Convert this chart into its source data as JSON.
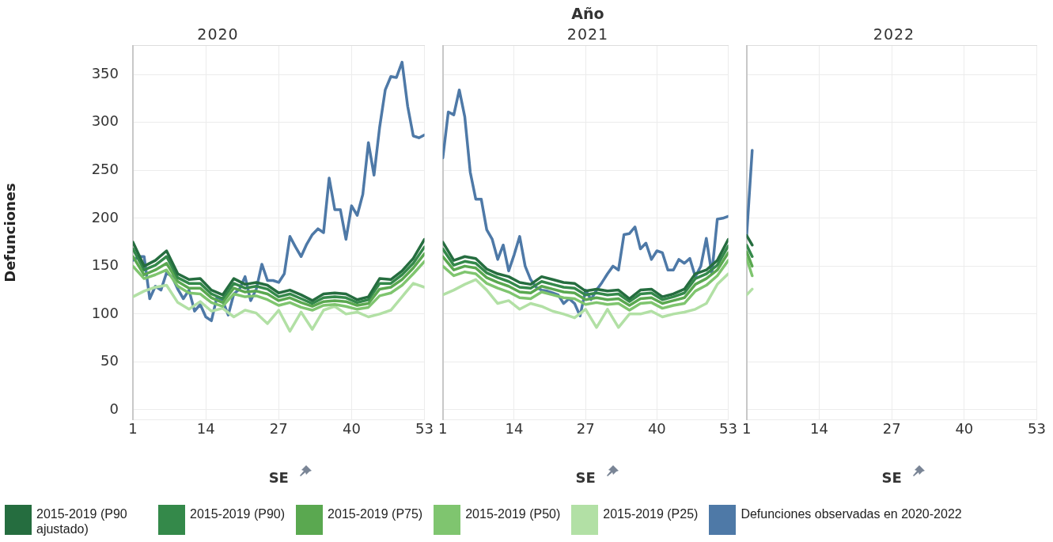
{
  "chart_data": [
    {
      "type": "line",
      "subtitle": "2020",
      "xlabel": "SE",
      "ylabel": "Defunciones",
      "x": [
        1,
        3,
        5,
        7,
        9,
        11,
        13,
        15,
        17,
        19,
        21,
        23,
        25,
        27,
        29,
        31,
        33,
        35,
        37,
        39,
        41,
        43,
        45,
        47,
        49,
        51,
        53
      ],
      "xlim": [
        1,
        53
      ],
      "xticks": [
        1,
        14,
        27,
        40,
        53
      ],
      "ylim": [
        -10,
        380
      ],
      "yticks": [
        0,
        50,
        100,
        150,
        200,
        250,
        300,
        350
      ],
      "grid": true,
      "legend": "bottom",
      "marker": "none",
      "series": [
        {
          "name": "2015-2019 (P90 ajustado)",
          "color": "#256d3f",
          "values": [
            175,
            150,
            156,
            166,
            142,
            136,
            137,
            125,
            120,
            137,
            131,
            133,
            130,
            122,
            125,
            120,
            114,
            121,
            122,
            121,
            115,
            118,
            137,
            136,
            145,
            158,
            178
          ]
        },
        {
          "name": "2015-2019 (P90)",
          "color": "#34894a",
          "values": [
            168,
            146,
            151,
            160,
            138,
            132,
            132,
            121,
            116,
            132,
            127,
            129,
            126,
            118,
            121,
            116,
            111,
            117,
            118,
            117,
            112,
            115,
            132,
            132,
            141,
            153,
            170
          ]
        },
        {
          "name": "2015-2019 (P75)",
          "color": "#5aa850",
          "values": [
            160,
            141,
            146,
            153,
            134,
            127,
            127,
            117,
            112,
            127,
            123,
            124,
            121,
            114,
            117,
            112,
            108,
            113,
            114,
            113,
            109,
            111,
            126,
            128,
            136,
            148,
            163
          ]
        },
        {
          "name": "2015-2019 (P50)",
          "color": "#7fc56f",
          "values": [
            150,
            137,
            141,
            146,
            129,
            122,
            121,
            112,
            108,
            121,
            118,
            119,
            115,
            109,
            112,
            107,
            104,
            109,
            110,
            108,
            105,
            107,
            119,
            122,
            130,
            142,
            155
          ]
        },
        {
          "name": "2015-2019 (P25)",
          "color": "#b2e0a5",
          "values": [
            118,
            124,
            128,
            130,
            112,
            105,
            113,
            103,
            106,
            97,
            104,
            101,
            90,
            104,
            82,
            102,
            84,
            104,
            108,
            100,
            102,
            97,
            100,
            104,
            118,
            132,
            128
          ]
        },
        {
          "name": "Defunciones observadas en 2020-2022",
          "color": "#4e79a7",
          "x": [
            1,
            2,
            3,
            4,
            5,
            6,
            7,
            8,
            9,
            10,
            11,
            12,
            13,
            14,
            15,
            16,
            17,
            18,
            19,
            20,
            21,
            22,
            23,
            24,
            25,
            26,
            27,
            28,
            29,
            30,
            31,
            32,
            33,
            34,
            35,
            36,
            37,
            38,
            39,
            40,
            41,
            42,
            43,
            44,
            45,
            46,
            47,
            48,
            49,
            50,
            51,
            52,
            53
          ],
          "values": [
            156,
            160,
            160,
            116,
            129,
            125,
            143,
            139,
            126,
            116,
            125,
            103,
            110,
            97,
            93,
            118,
            114,
            99,
            121,
            126,
            139,
            114,
            126,
            152,
            135,
            135,
            133,
            142,
            181,
            170,
            160,
            173,
            183,
            189,
            185,
            242,
            209,
            209,
            178,
            213,
            203,
            225,
            279,
            245,
            295,
            334,
            348,
            347,
            363,
            317,
            286,
            284,
            287
          ]
        }
      ]
    },
    {
      "type": "line",
      "title": "Año",
      "subtitle": "2021",
      "xlabel": "SE",
      "x": [
        1,
        3,
        5,
        7,
        9,
        11,
        13,
        15,
        17,
        19,
        21,
        23,
        25,
        27,
        29,
        31,
        33,
        35,
        37,
        39,
        41,
        43,
        45,
        47,
        49,
        51,
        53
      ],
      "xlim": [
        1,
        53
      ],
      "xticks": [
        1,
        14,
        27,
        40,
        53
      ],
      "ylim": [
        -10,
        380
      ],
      "yticks": [
        0,
        50,
        100,
        150,
        200,
        250,
        300,
        350
      ],
      "grid": true,
      "tick_labels": "x",
      "marker": "none",
      "series": [
        {
          "color": "#256d3f",
          "values": [
            175,
            156,
            160,
            158,
            147,
            142,
            139,
            133,
            131,
            139,
            136,
            133,
            132,
            124,
            126,
            124,
            125,
            116,
            125,
            126,
            118,
            121,
            126,
            142,
            146,
            156,
            178
          ]
        },
        {
          "color": "#34894a",
          "values": [
            168,
            151,
            155,
            153,
            143,
            138,
            134,
            128,
            127,
            134,
            131,
            128,
            127,
            120,
            122,
            120,
            121,
            113,
            121,
            122,
            115,
            118,
            122,
            137,
            142,
            151,
            171
          ]
        },
        {
          "color": "#5aa850",
          "values": [
            160,
            146,
            150,
            148,
            138,
            133,
            129,
            123,
            122,
            129,
            126,
            123,
            122,
            115,
            117,
            115,
            116,
            109,
            116,
            117,
            111,
            114,
            117,
            131,
            137,
            146,
            164
          ]
        },
        {
          "color": "#7fc56f",
          "values": [
            150,
            140,
            144,
            142,
            132,
            127,
            123,
            117,
            116,
            123,
            120,
            117,
            116,
            110,
            112,
            110,
            111,
            104,
            111,
            112,
            106,
            109,
            111,
            124,
            130,
            140,
            156
          ]
        },
        {
          "color": "#b2e0a5",
          "values": [
            120,
            125,
            131,
            136,
            125,
            111,
            114,
            105,
            111,
            108,
            103,
            100,
            96,
            105,
            86,
            105,
            86,
            100,
            100,
            103,
            97,
            100,
            102,
            105,
            111,
            131,
            142
          ]
        },
        {
          "color": "#4e79a7",
          "x": [
            1,
            2,
            3,
            4,
            5,
            6,
            7,
            8,
            9,
            10,
            11,
            12,
            13,
            14,
            15,
            16,
            17,
            18,
            19,
            20,
            21,
            22,
            23,
            24,
            25,
            26,
            27,
            28,
            29,
            30,
            31,
            32,
            33,
            34,
            35,
            36,
            37,
            38,
            39,
            40,
            41,
            42,
            43,
            44,
            45,
            46,
            47,
            48,
            49,
            50,
            51,
            52,
            53
          ],
          "values": [
            263,
            311,
            308,
            334,
            306,
            248,
            220,
            220,
            188,
            178,
            157,
            172,
            145,
            162,
            181,
            150,
            136,
            128,
            125,
            124,
            122,
            120,
            111,
            116,
            111,
            98,
            125,
            115,
            125,
            133,
            142,
            150,
            146,
            183,
            184,
            191,
            168,
            174,
            157,
            166,
            164,
            146,
            146,
            157,
            153,
            158,
            139,
            150,
            179,
            142,
            199,
            200,
            202
          ]
        }
      ]
    },
    {
      "type": "line",
      "subtitle": "2022",
      "xlabel": "SE",
      "x": [
        1,
        2
      ],
      "xlim": [
        1,
        53
      ],
      "xticks": [
        1,
        14,
        27,
        40,
        53
      ],
      "ylim": [
        -10,
        380
      ],
      "yticks": [
        0,
        50,
        100,
        150,
        200,
        250,
        300,
        350
      ],
      "grid": true,
      "tick_labels": "x",
      "marker": "none",
      "series": [
        {
          "color": "#256d3f",
          "values": [
            182,
            172
          ]
        },
        {
          "color": "#34894a",
          "values": [
            172,
            160
          ]
        },
        {
          "color": "#5aa850",
          "values": [
            165,
            150
          ]
        },
        {
          "color": "#7fc56f",
          "values": [
            158,
            140
          ]
        },
        {
          "color": "#b2e0a5",
          "values": [
            120,
            126
          ]
        },
        {
          "color": "#4e79a7",
          "values": [
            181,
            271
          ]
        }
      ]
    }
  ]
}
